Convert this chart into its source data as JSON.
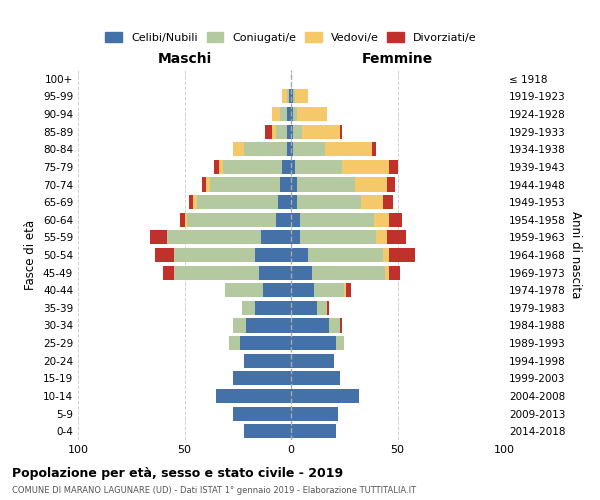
{
  "age_groups": [
    "0-4",
    "5-9",
    "10-14",
    "15-19",
    "20-24",
    "25-29",
    "30-34",
    "35-39",
    "40-44",
    "45-49",
    "50-54",
    "55-59",
    "60-64",
    "65-69",
    "70-74",
    "75-79",
    "80-84",
    "85-89",
    "90-94",
    "95-99",
    "100+"
  ],
  "birth_years": [
    "2014-2018",
    "2009-2013",
    "2004-2008",
    "1999-2003",
    "1994-1998",
    "1989-1993",
    "1984-1988",
    "1979-1983",
    "1974-1978",
    "1969-1973",
    "1964-1968",
    "1959-1963",
    "1954-1958",
    "1949-1953",
    "1944-1948",
    "1939-1943",
    "1934-1938",
    "1929-1933",
    "1924-1928",
    "1919-1923",
    "≤ 1918"
  ],
  "maschi": {
    "celibi": [
      22,
      27,
      35,
      27,
      22,
      24,
      21,
      17,
      13,
      15,
      17,
      14,
      7,
      6,
      5,
      4,
      2,
      2,
      2,
      1,
      0
    ],
    "coniugati": [
      0,
      0,
      0,
      0,
      0,
      5,
      6,
      6,
      18,
      40,
      38,
      44,
      42,
      38,
      33,
      28,
      20,
      5,
      3,
      1,
      0
    ],
    "vedovi": [
      0,
      0,
      0,
      0,
      0,
      0,
      0,
      0,
      0,
      0,
      0,
      0,
      1,
      2,
      2,
      2,
      5,
      2,
      4,
      2,
      0
    ],
    "divorziati": [
      0,
      0,
      0,
      0,
      0,
      0,
      0,
      0,
      0,
      5,
      9,
      8,
      2,
      2,
      2,
      2,
      0,
      3,
      0,
      0,
      0
    ]
  },
  "femmine": {
    "nubili": [
      21,
      22,
      32,
      23,
      20,
      21,
      18,
      12,
      11,
      10,
      8,
      4,
      4,
      3,
      3,
      2,
      1,
      1,
      1,
      1,
      0
    ],
    "coniugate": [
      0,
      0,
      0,
      0,
      0,
      4,
      5,
      5,
      14,
      34,
      35,
      36,
      35,
      30,
      27,
      22,
      15,
      4,
      2,
      1,
      0
    ],
    "vedove": [
      0,
      0,
      0,
      0,
      0,
      0,
      0,
      0,
      1,
      2,
      3,
      5,
      7,
      10,
      15,
      22,
      22,
      18,
      14,
      6,
      0
    ],
    "divorziate": [
      0,
      0,
      0,
      0,
      0,
      0,
      1,
      1,
      2,
      5,
      12,
      9,
      6,
      5,
      4,
      4,
      2,
      1,
      0,
      0,
      0
    ]
  },
  "colors": {
    "celibi": "#4472a8",
    "coniugati": "#b5c9a1",
    "vedovi": "#f5c96a",
    "divorziati": "#c0312b"
  },
  "title": "Popolazione per età, sesso e stato civile - 2019",
  "subtitle": "COMUNE DI MARANO LAGUNARE (UD) - Dati ISTAT 1° gennaio 2019 - Elaborazione TUTTITALIA.IT",
  "xlim": 100,
  "ylabel_left": "Fasce di età",
  "ylabel_right": "Anni di nascita",
  "xlabel_left": "Maschi",
  "xlabel_right": "Femmine",
  "bg_color": "#ffffff",
  "grid_color": "#cccccc"
}
